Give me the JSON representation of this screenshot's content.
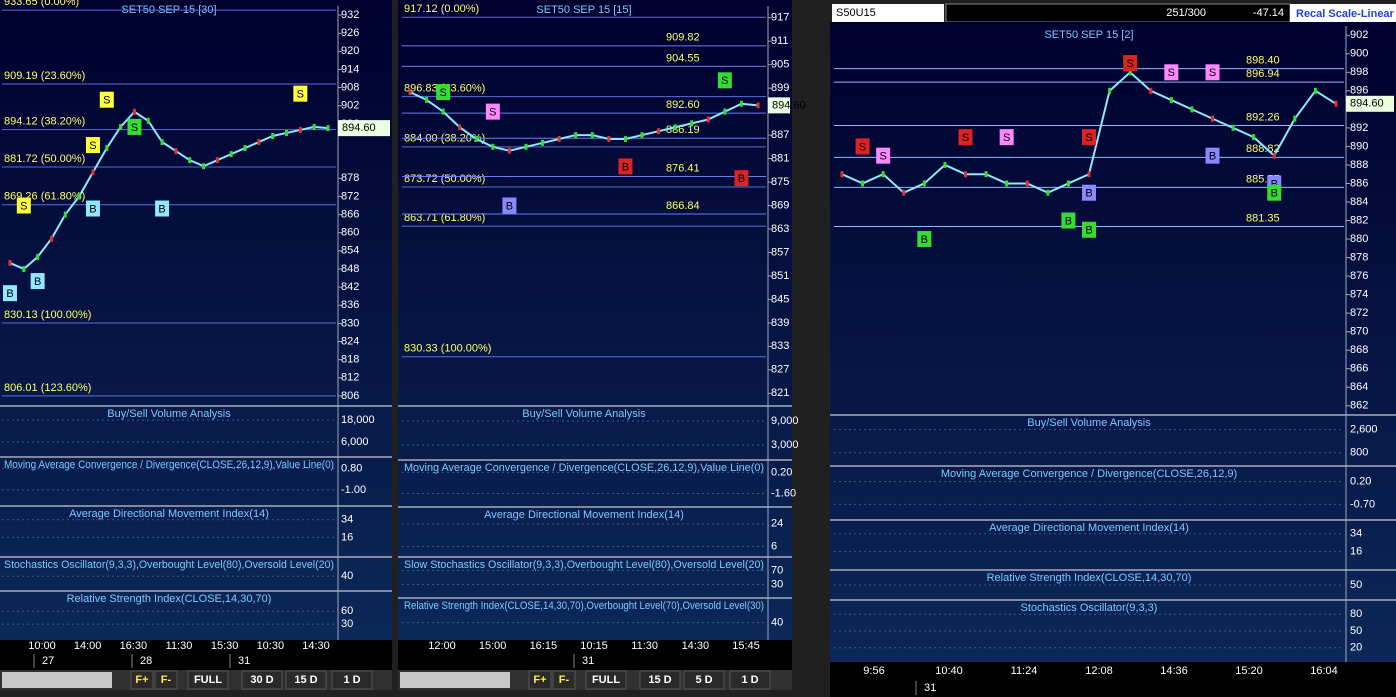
{
  "panels": [
    {
      "title": "SET50 SEP 15  [30]",
      "price": {
        "ylim": [
          803,
          935
        ],
        "ticks": [
          932,
          926,
          920,
          914,
          908,
          902,
          896,
          878,
          872,
          866,
          860,
          854,
          848,
          842,
          836,
          830,
          824,
          818,
          812,
          806
        ],
        "levels": [
          {
            "value": 933.65,
            "label": "933.65 (0.00%)"
          },
          {
            "value": 909.19,
            "label": "909.19 (23.60%)"
          },
          {
            "value": 894.12,
            "label": "894.12 (38.20%)"
          },
          {
            "value": 881.72,
            "label": "881.72 (50.00%)"
          },
          {
            "value": 869.26,
            "label": "869.26 (61.80%)"
          },
          {
            "value": 830.13,
            "label": "830.13 (100.00%)"
          },
          {
            "value": 806.01,
            "label": "806.01 (123.60%)"
          }
        ],
        "closes": [
          850,
          848,
          852,
          858,
          866,
          872,
          880,
          888,
          895,
          900,
          897,
          890,
          887,
          884,
          882,
          884,
          886,
          888,
          890,
          892,
          893,
          894,
          895,
          894.6
        ],
        "last": {
          "value": 894.6,
          "label": "894.60"
        },
        "signals": [
          {
            "text": "S",
            "i": 1,
            "price": 869,
            "color": "#ffff33"
          },
          {
            "text": "B",
            "i": 0,
            "price": 840,
            "color": "#8fe8ff"
          },
          {
            "text": "B",
            "i": 2,
            "price": 844,
            "color": "#8fe8ff"
          },
          {
            "text": "S",
            "i": 6,
            "price": 889,
            "color": "#ffff33"
          },
          {
            "text": "B",
            "i": 6,
            "price": 868,
            "color": "#8fe8ff"
          },
          {
            "text": "S",
            "i": 7,
            "price": 904,
            "color": "#ffff33"
          },
          {
            "text": "S",
            "i": 9,
            "price": 895,
            "color": "#33dd33"
          },
          {
            "text": "B",
            "i": 11,
            "price": 868,
            "color": "#8fe8ff"
          },
          {
            "text": "S",
            "i": 21,
            "price": 906,
            "color": "#ffff33"
          }
        ]
      },
      "indicators": [
        {
          "title": "Buy/Sell Volume Analysis",
          "ylim": [
            0,
            24000
          ],
          "ticks": [
            {
              "value": 18000,
              "label": "18,000"
            },
            {
              "value": 6000,
              "label": "6,000"
            }
          ]
        },
        {
          "title": "Moving Average Convergence / Divergence(CLOSE,26,12,9),Value Line(0)",
          "ylim": [
            -2,
            1.5
          ],
          "ticks": [
            {
              "value": 0.8,
              "label": "0.80"
            },
            {
              "value": -1,
              "label": "-1.00"
            }
          ]
        },
        {
          "title": "Average Directional Movement Index(14)",
          "ylim": [
            0,
            45
          ],
          "ticks": [
            34,
            16
          ]
        },
        {
          "title": "Stochastics Oscillator(9,3,3),Overbought Level(80),Oversold Level(20)",
          "ylim": [
            0,
            100
          ],
          "ticks": [
            40
          ]
        },
        {
          "title": "Relative Strength Index(CLOSE,14,30,70)",
          "ylim": [
            0,
            100
          ],
          "ticks": [
            60,
            30
          ]
        }
      ],
      "time_labels": [
        "10:00",
        "14:00",
        "16:30",
        "11:30",
        "15:30",
        "10:30",
        "14:30"
      ],
      "date_labels": [
        "27",
        "28",
        "31"
      ],
      "buttons": [
        "F+",
        "F-",
        "FULL",
        "30 D",
        "15 D",
        "1 D"
      ]
    },
    {
      "title": "SET50 SEP 15  [15]",
      "price": {
        "ylim": [
          818,
          920
        ],
        "ticks": [
          917,
          911,
          905,
          899,
          887,
          881,
          875,
          869,
          863,
          857,
          851,
          845,
          839,
          833,
          827,
          821
        ],
        "levels": [
          {
            "value": 917.12,
            "label": "917.12 (0.00%)"
          },
          {
            "value": 896.83,
            "label": "896.83 (23.60%)"
          },
          {
            "value": 884.0,
            "label": "884.00 (38.20%)"
          },
          {
            "value": 873.72,
            "label": "873.72 (50.00%)"
          },
          {
            "value": 863.71,
            "label": "863.71 (61.80%)"
          },
          {
            "value": 830.33,
            "label": "830.33 (100.00%)"
          }
        ],
        "lines": [
          {
            "value": 909.82,
            "label": "909.82"
          },
          {
            "value": 904.55,
            "label": "904.55"
          },
          {
            "value": 892.6,
            "label": "892.60"
          },
          {
            "value": 886.19,
            "label": "886.19"
          },
          {
            "value": 876.41,
            "label": "876.41"
          },
          {
            "value": 866.84,
            "label": "866.84"
          }
        ],
        "closes": [
          898,
          896,
          893,
          889,
          886,
          884,
          883,
          884,
          885,
          886,
          887,
          887,
          886,
          886,
          887,
          888,
          889,
          890,
          891,
          893,
          895,
          894.6
        ],
        "last": {
          "value": 894.6,
          "label": "894.60"
        },
        "signals": [
          {
            "text": "S",
            "i": 2,
            "price": 898,
            "color": "#33dd33"
          },
          {
            "text": "S",
            "i": 5,
            "price": 893,
            "color": "#ff88ff"
          },
          {
            "text": "B",
            "i": 6,
            "price": 869,
            "color": "#8888ff"
          },
          {
            "text": "S",
            "i": 19,
            "price": 901,
            "color": "#33dd33"
          },
          {
            "text": "B",
            "i": 20,
            "price": 876,
            "color": "#dd2222"
          },
          {
            "text": "B",
            "i": 13,
            "price": 879,
            "color": "#dd2222"
          }
        ]
      },
      "indicators": [
        {
          "title": "Buy/Sell Volume Analysis",
          "ylim": [
            0,
            12000
          ],
          "ticks": [
            {
              "value": 9000,
              "label": "9,000"
            },
            {
              "value": 3000,
              "label": "3,000"
            }
          ]
        },
        {
          "title": "Moving Average Convergence / Divergence(CLOSE,26,12,9),Value Line(0)",
          "ylim": [
            -2.5,
            1
          ],
          "ticks": [
            {
              "value": 0.2,
              "label": "0.20"
            },
            {
              "value": -1.6,
              "label": "-1.60"
            }
          ]
        },
        {
          "title": "Average Directional Movement Index(14)",
          "ylim": [
            0,
            35
          ],
          "ticks": [
            24,
            6
          ]
        },
        {
          "title": "Slow Stochastics Oscillator(9,3,3),Overbought Level(80),Oversold Level(20)",
          "ylim": [
            0,
            100
          ],
          "ticks": [
            70,
            30
          ]
        },
        {
          "title": "Relative Strength Index(CLOSE,14,30,70),Overbought Level(70),Oversold Level(30)",
          "ylim": [
            0,
            100
          ],
          "ticks": [
            40
          ]
        }
      ],
      "time_labels": [
        "12:00",
        "15:00",
        "16:15",
        "10:15",
        "11:30",
        "14:30",
        "15:45"
      ],
      "date_labels": [
        "31"
      ],
      "buttons": [
        "F+",
        "F-",
        "FULL",
        "15 D",
        "5 D",
        "1 D"
      ]
    },
    {
      "title": "SET50 SEP 15  [2]",
      "price": {
        "ylim": [
          861,
          903
        ],
        "ticks": [
          902,
          900,
          898,
          896,
          892,
          890,
          888,
          886,
          884,
          882,
          880,
          878,
          876,
          874,
          872,
          870,
          868,
          866,
          864,
          862
        ],
        "lines": [
          {
            "value": 898.4,
            "label": "898.40"
          },
          {
            "value": 896.94,
            "label": "896.94"
          },
          {
            "value": 892.26,
            "label": "892.26"
          },
          {
            "value": 888.82,
            "label": "888.82"
          },
          {
            "value": 885.57,
            "label": "885.57"
          },
          {
            "value": 881.35,
            "label": "881.35"
          }
        ],
        "closes": [
          887,
          886,
          887,
          885,
          886,
          888,
          887,
          887,
          886,
          886,
          885,
          886,
          887,
          896,
          898,
          896,
          895,
          894,
          893,
          892,
          891,
          889,
          893,
          896,
          894.6
        ],
        "last": {
          "value": 894.6,
          "label": "894.60"
        },
        "signals": [
          {
            "text": "S",
            "i": 1,
            "price": 890,
            "color": "#dd2222"
          },
          {
            "text": "S",
            "i": 2,
            "price": 889,
            "color": "#ff88ff"
          },
          {
            "text": "B",
            "i": 4,
            "price": 880,
            "color": "#33dd33"
          },
          {
            "text": "S",
            "i": 6,
            "price": 891,
            "color": "#dd2222"
          },
          {
            "text": "S",
            "i": 8,
            "price": 891,
            "color": "#ff88ff"
          },
          {
            "text": "S",
            "i": 12,
            "price": 891,
            "color": "#dd2222"
          },
          {
            "text": "B",
            "i": 11,
            "price": 882,
            "color": "#33dd33"
          },
          {
            "text": "B",
            "i": 12,
            "price": 881,
            "color": "#33dd33"
          },
          {
            "text": "B",
            "i": 12,
            "price": 885,
            "color": "#8888ff"
          },
          {
            "text": "S",
            "i": 14,
            "price": 899,
            "color": "#dd2222"
          },
          {
            "text": "S",
            "i": 16,
            "price": 898,
            "color": "#ff88ff"
          },
          {
            "text": "S",
            "i": 18,
            "price": 898,
            "color": "#ff88ff"
          },
          {
            "text": "B",
            "i": 18,
            "price": 889,
            "color": "#8888ff"
          },
          {
            "text": "B",
            "i": 21,
            "price": 886,
            "color": "#8888ff"
          },
          {
            "text": "B",
            "i": 21,
            "price": 885,
            "color": "#33dd33"
          }
        ]
      },
      "indicators": [
        {
          "title": "Buy/Sell Volume Analysis",
          "ylim": [
            0,
            3500
          ],
          "ticks": [
            {
              "value": 2600,
              "label": "2,600"
            },
            800
          ]
        },
        {
          "title": "Moving Average Convergence / Divergence(CLOSE,26,12,9)",
          "ylim": [
            -1.2,
            0.7
          ],
          "ticks": [
            {
              "value": 0.2,
              "label": "0.20"
            },
            {
              "value": -0.7,
              "label": "-0.70"
            }
          ]
        },
        {
          "title": "Average Directional Movement Index(14)",
          "ylim": [
            0,
            45
          ],
          "ticks": [
            34,
            16
          ]
        },
        {
          "title": "Relative Strength Index(CLOSE,14,30,70)",
          "ylim": [
            0,
            100
          ],
          "ticks": [
            50
          ]
        },
        {
          "title": "Stochastics Oscillator(9,3,3)",
          "ylim": [
            0,
            100
          ],
          "ticks": [
            80,
            50,
            20
          ]
        }
      ],
      "time_labels": [
        "9:56",
        "10:40",
        "11:24",
        "12:08",
        "14:36",
        "15:20",
        "16:04"
      ],
      "date_labels": [
        "31"
      ]
    }
  ],
  "toolbar": {
    "symbol": "S50U15",
    "count": "251/300",
    "change": "-47.14",
    "scale": "Recal Scale-Linear"
  }
}
